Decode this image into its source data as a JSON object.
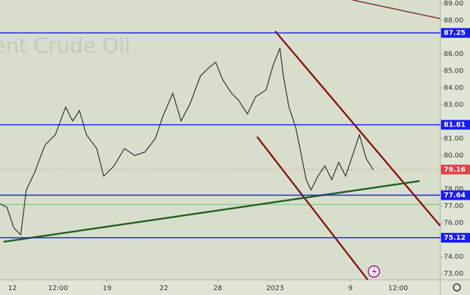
{
  "chart_data": {
    "type": "line",
    "watermark": "ent Crude Oil",
    "x": [
      0,
      10,
      20,
      30,
      38,
      50,
      65,
      80,
      95,
      105,
      115,
      125,
      140,
      150,
      165,
      180,
      195,
      210,
      225,
      235,
      250,
      262,
      275,
      290,
      300,
      312,
      322,
      335,
      345,
      358,
      370,
      385,
      395,
      405,
      410,
      418,
      428,
      435,
      443,
      450,
      460,
      470,
      480,
      490,
      500,
      510,
      520,
      530,
      540
    ],
    "series": [
      {
        "name": "Brent Crude Oil",
        "color": "#2a2a2a",
        "values": [
          77.13,
          76.93,
          75.7,
          75.29,
          77.95,
          78.97,
          80.61,
          81.22,
          82.86,
          82.04,
          82.65,
          81.22,
          80.4,
          78.77,
          79.38,
          80.4,
          79.99,
          80.2,
          81.02,
          82.24,
          83.68,
          82.04,
          83.06,
          84.7,
          85.11,
          85.52,
          84.49,
          83.68,
          83.27,
          82.45,
          83.47,
          83.88,
          85.31,
          86.34,
          84.7,
          82.86,
          81.63,
          80.2,
          78.56,
          77.95,
          78.77,
          79.38,
          78.56,
          79.58,
          78.77,
          79.99,
          81.22,
          79.79,
          79.16
        ]
      }
    ],
    "levels": [
      87.25,
      81.81,
      77.64,
      75.12
    ],
    "level_color": "#1a1aff",
    "last_price": 79.16,
    "last_price_color": "#e0434a",
    "xlim": [
      0,
      637
    ],
    "ylim": [
      72.63,
      89.2
    ],
    "xticks": [
      {
        "value": 18,
        "label": "12"
      },
      {
        "value": 84,
        "label": "12:00"
      },
      {
        "value": 155,
        "label": "19"
      },
      {
        "value": 237,
        "label": "22"
      },
      {
        "value": 315,
        "label": "28"
      },
      {
        "value": 398,
        "label": "2023"
      },
      {
        "value": 507,
        "label": "9"
      },
      {
        "value": 576,
        "label": "12:00"
      }
    ],
    "yticks": [
      {
        "value": 73,
        "label": "73.00"
      },
      {
        "value": 74,
        "label": "74.00"
      },
      {
        "value": 76,
        "label": "76.00"
      },
      {
        "value": 77,
        "label": "77.00"
      },
      {
        "value": 78,
        "label": "78.00"
      },
      {
        "value": 80,
        "label": "80.00"
      },
      {
        "value": 81,
        "label": "81.00"
      },
      {
        "value": 83,
        "label": "83.00"
      },
      {
        "value": 84,
        "label": "84.00"
      },
      {
        "value": 85,
        "label": "85.00"
      },
      {
        "value": 86,
        "label": "86.00"
      },
      {
        "value": 88,
        "label": "88.00"
      },
      {
        "value": 89,
        "label": "89.00"
      }
    ]
  }
}
